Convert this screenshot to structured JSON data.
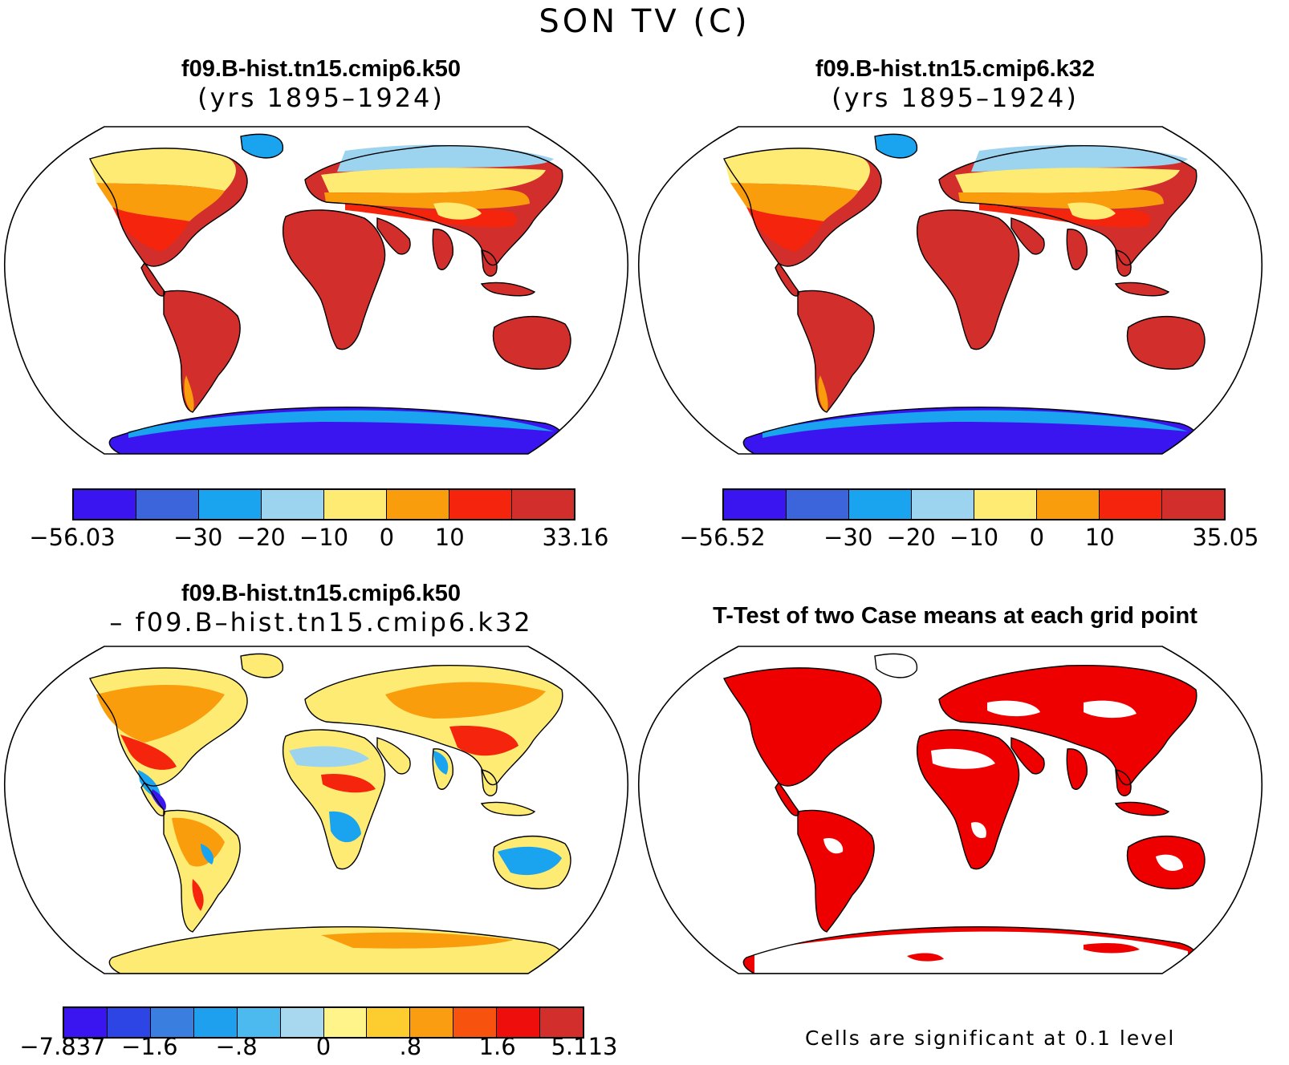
{
  "figure_title": "SON TV (C)",
  "panels": [
    {
      "line1": "f09.B-hist.tn15.cmip6.k50",
      "line2": "(yrs 1895–1924)"
    },
    {
      "line1": "f09.B-hist.tn15.cmip6.k32",
      "line2": "(yrs 1895–1924)"
    },
    {
      "line1": "f09.B-hist.tn15.cmip6.k50",
      "line2": "– f09.B–hist.tn15.cmip6.k32"
    },
    {
      "line1": "T-Test of two Case means at each grid point",
      "line2": ""
    }
  ],
  "colorbars": [
    {
      "colors": [
        "#3a15f0",
        "#3c64db",
        "#1aa3ef",
        "#9cd3ef",
        "#fdeb73",
        "#fa9d0c",
        "#f5250d",
        "#d22e2b"
      ],
      "labels": [
        "−56.03",
        "−30",
        "−20",
        "−10",
        "0",
        "10",
        "33.16"
      ],
      "label_positions": [
        0,
        2,
        3,
        4,
        5,
        6,
        8
      ]
    },
    {
      "colors": [
        "#3a15f0",
        "#3c64db",
        "#1aa3ef",
        "#9cd3ef",
        "#fdeb73",
        "#fa9d0c",
        "#f5250d",
        "#d22e2b"
      ],
      "labels": [
        "−56.52",
        "−30",
        "−20",
        "−10",
        "0",
        "10",
        "35.05"
      ],
      "label_positions": [
        0,
        2,
        3,
        4,
        5,
        6,
        8
      ]
    },
    {
      "colors": [
        "#3a15f0",
        "#2e45e6",
        "#3a7ee0",
        "#1fa0ef",
        "#4dbaef",
        "#a8d8ef",
        "#fef48a",
        "#fdcc2e",
        "#fb9d10",
        "#f8520f",
        "#ee0e0b",
        "#d22e2b"
      ],
      "labels": [
        "−7.837",
        "−1.6",
        "−.8",
        "0",
        ".8",
        "1.6",
        "5.113"
      ],
      "label_positions": [
        0,
        2,
        4,
        6,
        8,
        10,
        12
      ]
    }
  ],
  "footnote": "Cells are significant at 0.1 level",
  "map_colors": {
    "ocean": "#ffffff",
    "coast": "#000000",
    "sig": "#ee0000",
    "tv_hot": "#d22e2b",
    "tv_warm": "#f5250d",
    "tv_mild": "#fa9d0c",
    "tv_cool": "#fdeb73",
    "tv_cold": "#9cd3ef",
    "tv_icecap": "#1aa3ef",
    "tv_antarctic": "#3a15f0"
  }
}
